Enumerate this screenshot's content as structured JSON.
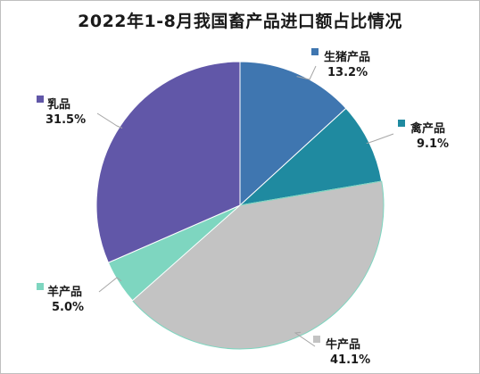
{
  "chart_data": {
    "type": "pie",
    "title": "2022年1-8月我国畜产品进口额占比情况",
    "slices": [
      {
        "name": "生猪产品",
        "value": 13.2,
        "label": "13.2%",
        "color": "#3f76b0"
      },
      {
        "name": "禽产品",
        "value": 9.1,
        "label": "9.1%",
        "color": "#1f8aa0"
      },
      {
        "name": "牛产品",
        "value": 41.1,
        "label": "41.1%",
        "color": "#c3c3c3"
      },
      {
        "name": "羊产品",
        "value": 5.0,
        "label": "5.0%",
        "color": "#7ed6c0"
      },
      {
        "name": "乳品",
        "value": 31.5,
        "label": "31.5%",
        "color": "#6157a8"
      }
    ],
    "legend": "none",
    "start_angle_deg": 0,
    "direction": "clockwise"
  }
}
